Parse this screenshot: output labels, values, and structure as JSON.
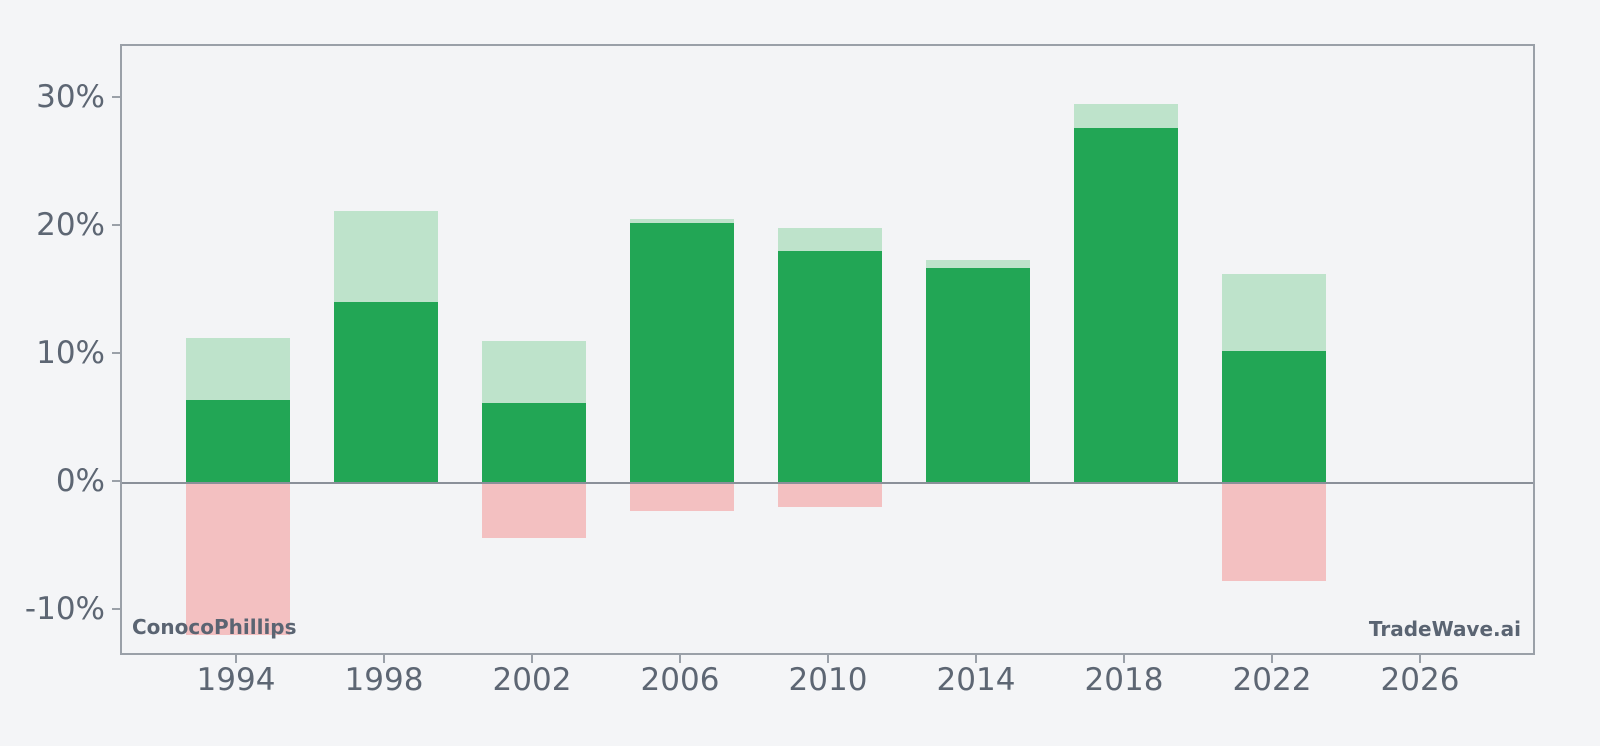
{
  "watermarks": {
    "left": "ConocoPhillips",
    "right": "TradeWave.ai"
  },
  "colors": {
    "background": "#f4f5f7",
    "plot_background": "#f3f4f6",
    "axis_border": "#9aa0a8",
    "zero_line": "#8a9099",
    "tick_text": "#5d6673",
    "watermark_text": "#5a6472",
    "light_green": "#bee3cb",
    "dark_green": "#22a655",
    "pink": "#f3c0c1"
  },
  "chart_data": {
    "type": "bar",
    "title": "",
    "xlabel": "",
    "ylabel": "",
    "categories": [
      "1994",
      "1998",
      "2002",
      "2006",
      "2010",
      "2014",
      "2018",
      "2022",
      "2026"
    ],
    "series": [
      {
        "name": "light-green-range-high",
        "color_key": "light_green",
        "values": [
          11.3,
          21.2,
          11.1,
          20.6,
          19.9,
          17.4,
          29.6,
          16.3,
          null
        ]
      },
      {
        "name": "dark-green-return",
        "color_key": "dark_green",
        "values": [
          6.5,
          14.1,
          6.2,
          20.3,
          18.1,
          16.8,
          27.7,
          10.3,
          null
        ]
      },
      {
        "name": "pink-range-low",
        "color_key": "pink",
        "values": [
          -11.9,
          0,
          -4.3,
          -2.2,
          -1.9,
          0,
          0,
          -7.7,
          null
        ]
      }
    ],
    "y_ticks": [
      {
        "label": "30%",
        "value": 30
      },
      {
        "label": "20%",
        "value": 20
      },
      {
        "label": "10%",
        "value": 10
      },
      {
        "label": "0%",
        "value": 0
      },
      {
        "label": "-10%",
        "value": -10
      }
    ],
    "ylim": [
      -13.6,
      34.1
    ],
    "grid": false,
    "legend": "none",
    "bar_unit": "percent"
  }
}
